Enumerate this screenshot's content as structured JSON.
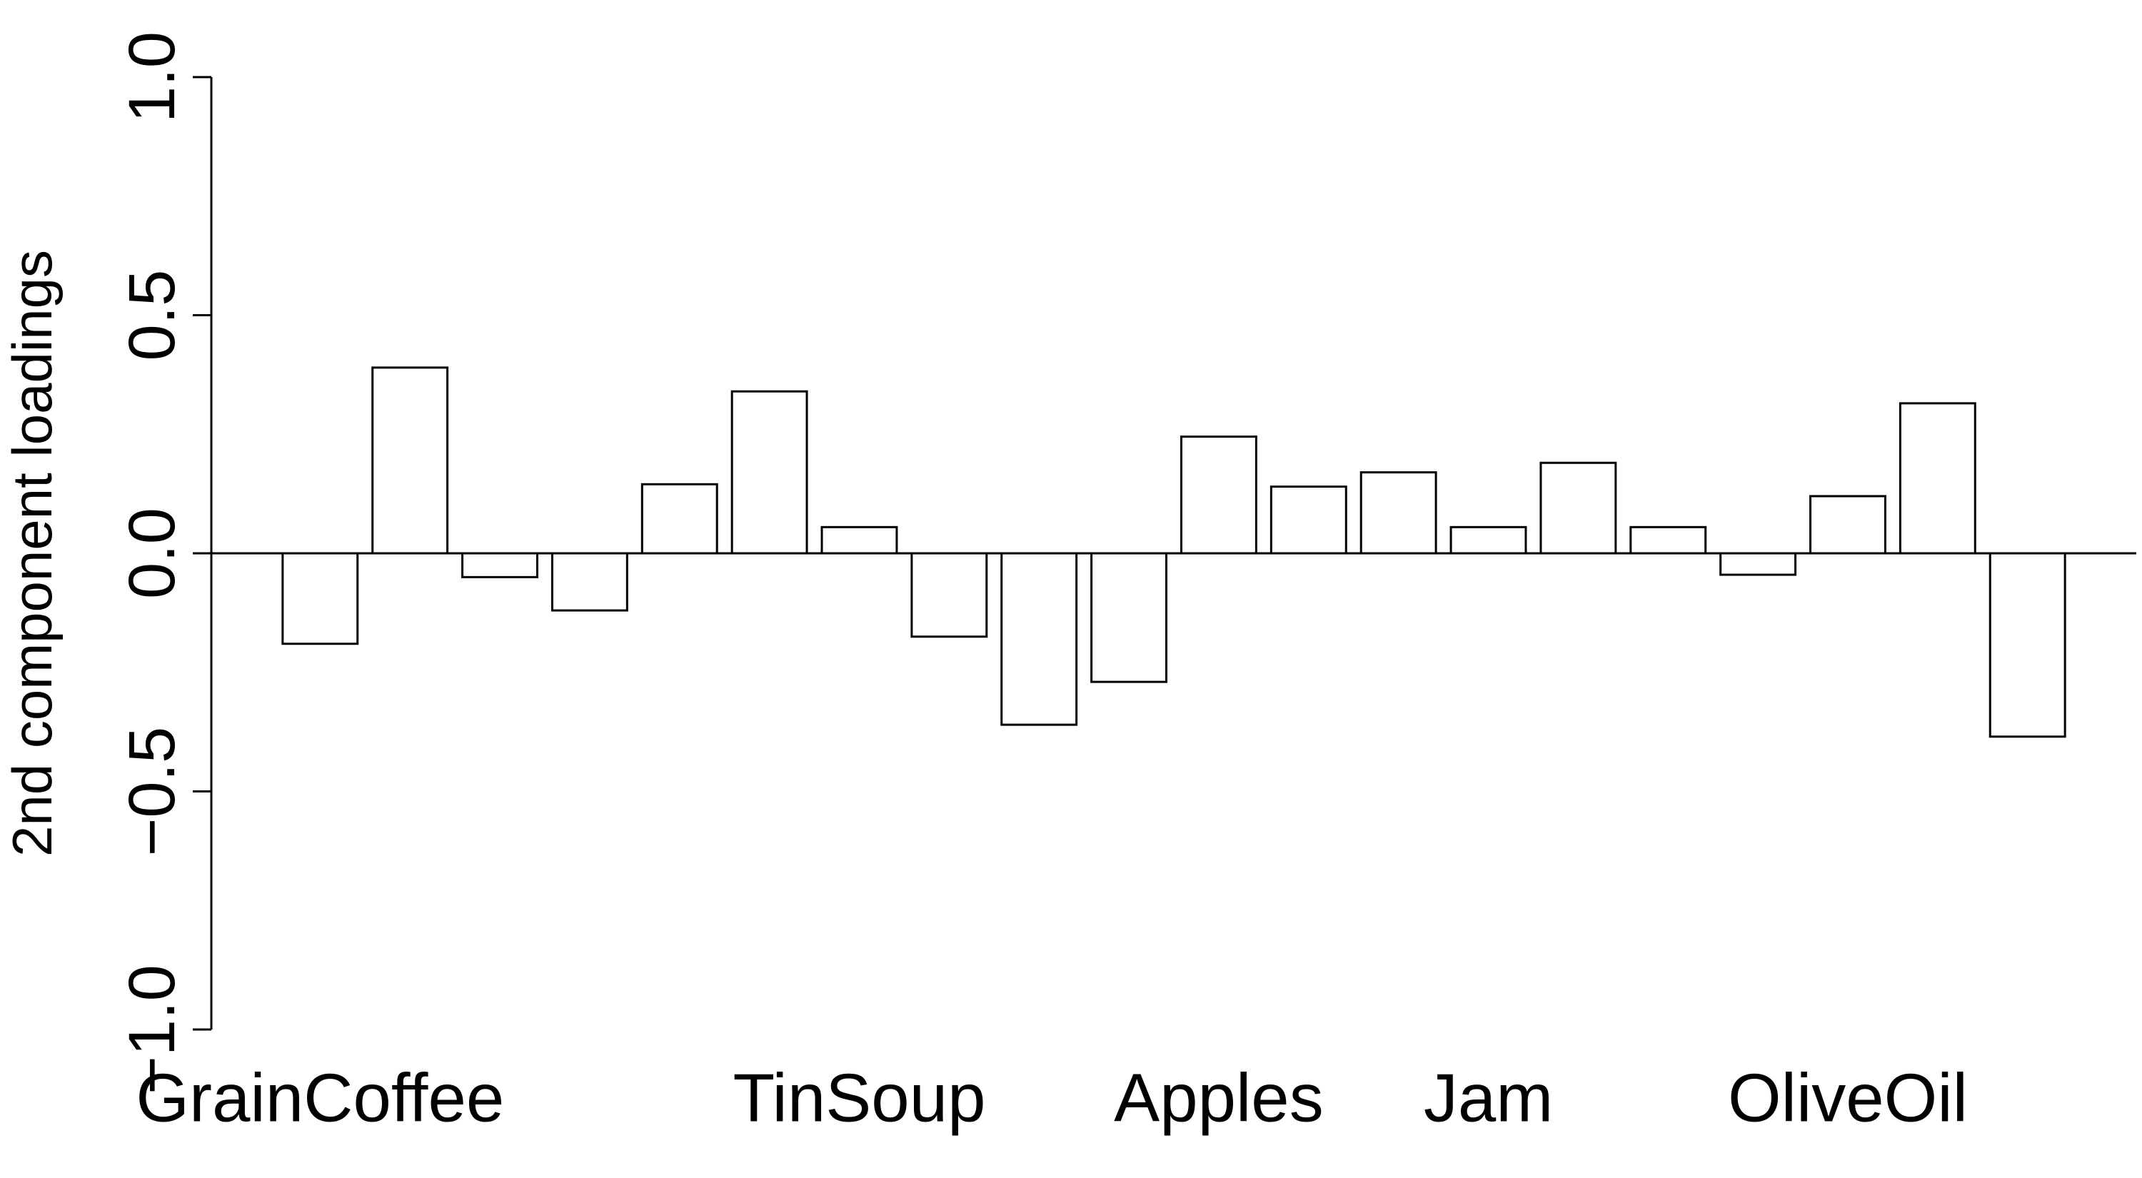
{
  "chart_data": {
    "type": "bar",
    "y_label": "2nd component loadings",
    "categories": [
      "GrainCoffee",
      null,
      null,
      null,
      null,
      null,
      "TinSoup",
      null,
      null,
      null,
      "Apples",
      null,
      null,
      "Jam",
      null,
      null,
      null,
      "OliveOil",
      null,
      null
    ],
    "values": [
      -0.19,
      0.39,
      -0.05,
      -0.12,
      0.145,
      0.34,
      0.055,
      -0.175,
      -0.36,
      -0.27,
      0.245,
      0.14,
      0.17,
      0.055,
      0.19,
      0.055,
      -0.045,
      0.12,
      0.315,
      -0.385
    ],
    "color": "#ffffff",
    "ylim": [
      -1.0,
      1.0
    ],
    "yticks": [
      {
        "value": -1.0,
        "label": "−1.0"
      },
      {
        "value": -0.5,
        "label": "−0.5"
      },
      {
        "value": 0.0,
        "label": "0.0"
      },
      {
        "value": 0.5,
        "label": "0.5"
      },
      {
        "value": 1.0,
        "label": "1.0"
      }
    ],
    "grid": false,
    "zero_line": true
  }
}
